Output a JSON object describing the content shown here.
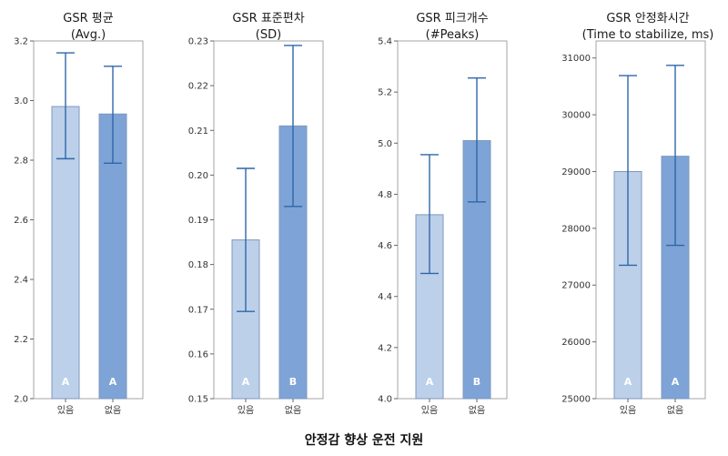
{
  "colors": {
    "bar_light": "#bcd0ea",
    "bar_dark": "#7ea3d6",
    "bar_stroke": "#7f98bd",
    "error_bar": "#2f66a8",
    "frame": "#a6a6a6"
  },
  "xlabel": "안정감 향상 운전 지원",
  "chart_data": [
    {
      "type": "bar",
      "title": [
        "GSR 평균",
        "(Avg.)"
      ],
      "categories": [
        "있음",
        "없음"
      ],
      "values": [
        2.98,
        2.955
      ],
      "err_low": [
        2.805,
        2.79
      ],
      "err_high": [
        3.16,
        3.115
      ],
      "groups": [
        "A",
        "A"
      ],
      "ylim": [
        2.0,
        3.2
      ],
      "yticks": [
        "2.0",
        "2.2",
        "2.4",
        "2.6",
        "2.8",
        "3.0",
        "3.2"
      ]
    },
    {
      "type": "bar",
      "title": [
        "GSR 표준편차",
        "(SD)"
      ],
      "categories": [
        "있음",
        "없음"
      ],
      "values": [
        0.1855,
        0.211
      ],
      "err_low": [
        0.1695,
        0.193
      ],
      "err_high": [
        0.2015,
        0.229
      ],
      "groups": [
        "A",
        "B"
      ],
      "ylim": [
        0.15,
        0.23
      ],
      "yticks": [
        "0.15",
        "0.16",
        "0.17",
        "0.18",
        "0.19",
        "0.20",
        "0.21",
        "0.22",
        "0.23"
      ]
    },
    {
      "type": "bar",
      "title": [
        "GSR 피크개수",
        "(#Peaks)"
      ],
      "categories": [
        "있음",
        "없음"
      ],
      "values": [
        4.72,
        5.01
      ],
      "err_low": [
        4.49,
        4.77
      ],
      "err_high": [
        4.955,
        5.255
      ],
      "groups": [
        "A",
        "B"
      ],
      "ylim": [
        4.0,
        5.4
      ],
      "yticks": [
        "4.0",
        "4.2",
        "4.4",
        "4.6",
        "4.8",
        "5.0",
        "5.2",
        "5.4"
      ]
    },
    {
      "type": "bar",
      "title": [
        "GSR 안정화시간",
        "(Time to stabilize, ms)"
      ],
      "categories": [
        "있음",
        "없음"
      ],
      "values": [
        29000,
        29270
      ],
      "err_low": [
        27350,
        27700
      ],
      "err_high": [
        30690,
        30870
      ],
      "groups": [
        "A",
        "A"
      ],
      "ylim": [
        25000,
        31300
      ],
      "yticks": [
        "25000",
        "26000",
        "27000",
        "28000",
        "29000",
        "30000",
        "31000"
      ]
    }
  ]
}
